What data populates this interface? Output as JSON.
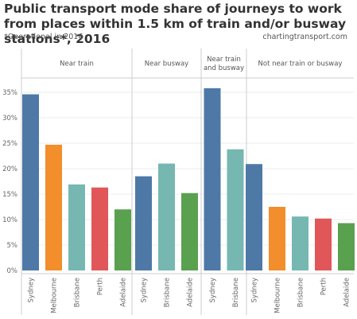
{
  "header": {
    "title": "Public transport mode share of journeys to work from places within 1.5 km of train and/or busway stations*, 2016",
    "footnote": "*Operational in 2016",
    "source": "chartingtransport.com"
  },
  "colors": {
    "Sydney": "#4e79a7",
    "Melbourne": "#f28e2b",
    "Brisbane": "#76b7b2",
    "Perth": "#e15759",
    "Adelaide": "#59a14f",
    "grid": "#eeeeee",
    "divider": "#cccccc"
  },
  "chart_data": {
    "type": "bar",
    "ylim": [
      0,
      37
    ],
    "y_ticks": [
      "0%",
      "5%",
      "10%",
      "15%",
      "20%",
      "25%",
      "30%",
      "35%"
    ],
    "y_tick_values": [
      0,
      5,
      10,
      15,
      20,
      25,
      30,
      35
    ],
    "grid": true,
    "panels": [
      {
        "title": [
          "Near train"
        ],
        "categories": [
          "Sydney",
          "Melbourne",
          "Brisbane",
          "Perth",
          "Adelaide"
        ],
        "values": [
          34.6,
          24.7,
          16.9,
          16.3,
          12.0
        ]
      },
      {
        "title": [
          "Near busway"
        ],
        "categories": [
          "Sydney",
          "Brisbane",
          "Adelaide"
        ],
        "values": [
          18.5,
          21.0,
          15.2
        ]
      },
      {
        "title": [
          "Near train",
          "and busway"
        ],
        "categories": [
          "Sydney",
          "Brisbane"
        ],
        "values": [
          35.8,
          23.8
        ]
      },
      {
        "title": [
          "Not near train or busway"
        ],
        "categories": [
          "Sydney",
          "Melbourne",
          "Brisbane",
          "Perth",
          "Adelaide"
        ],
        "values": [
          20.9,
          12.5,
          10.6,
          10.2,
          9.3
        ]
      }
    ]
  }
}
